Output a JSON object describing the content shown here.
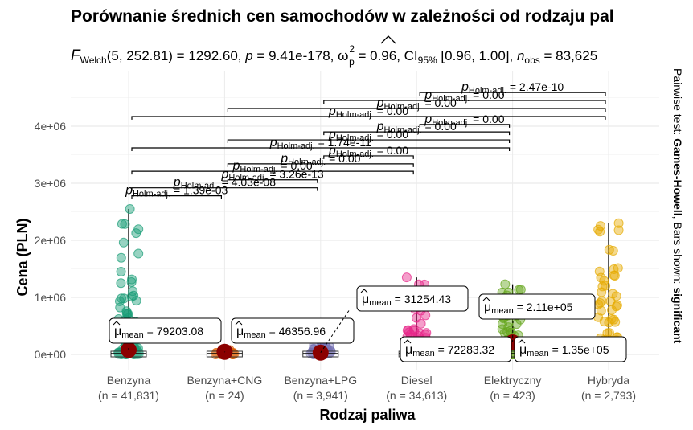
{
  "chart_data": {
    "type": "scatter",
    "title": "Porównanie średnich cen samochodów w zależności od rodzaju pal",
    "subtitle": {
      "stat_name": "F",
      "stat_sub": "Welch",
      "stat_rest": "(5, 252.81) = 1292.60, ",
      "p_part": "p",
      "p_rest": " = 9.41e-178, ",
      "omega": "ω",
      "omega_sup": "2",
      "omega_sub": "p",
      "omega_rest": " = 0.96, CI",
      "ci_sub": "95%",
      "ci_rest": " [0.96, 1.00], ",
      "n_part": "n",
      "n_sub": "obs",
      "n_rest": " = 83,625"
    },
    "xlabel": "Rodzaj paliwa",
    "ylabel": "Cena (PLN)",
    "caption_prefix": "Pairwise test: ",
    "caption_test": "Games-Howell",
    "caption_mid": ", Bars shown: ",
    "caption_bars": "significant",
    "ylim": [
      -300000,
      4900000
    ],
    "yticks": [
      0,
      1000000,
      2000000,
      3000000,
      4000000
    ],
    "ytick_labels": [
      "0e+00",
      "1e+06",
      "2e+06",
      "3e+06",
      "4e+06"
    ],
    "categories": [
      "Benzyna",
      "Benzyna+CNG",
      "Benzyna+LPG",
      "Diesel",
      "Elektryczny",
      "Hybryda"
    ],
    "counts": [
      "(n = 41,831)",
      "(n = 24)",
      "(n = 3,941)",
      "(n = 34,613)",
      "(n = 423)",
      "(n = 2,793)"
    ],
    "colors": [
      "#1b9e77",
      "#d95f02",
      "#7570b3",
      "#e7298a",
      "#66a61e",
      "#e6ab02"
    ],
    "mean_color": "#8b0000",
    "means": [
      79203.08,
      46356.96,
      31254.43,
      72283.32,
      211000,
      135000
    ],
    "mean_labels": [
      "79203.08",
      "46356.96",
      "31254.43",
      "72283.32",
      "2.11e+05",
      "1.35e+05"
    ],
    "mean_prefix": "μ",
    "mean_sub": "mean",
    "max_values": [
      2550000,
      80000,
      250000,
      1350000,
      1230000,
      2300000
    ],
    "comparisons": [
      {
        "from": 0,
        "to": 1,
        "label": "1.39e-03",
        "y": 2780000
      },
      {
        "from": 0,
        "to": 2,
        "label": "4.03e-08",
        "y": 2920000
      },
      {
        "from": 1,
        "to": 2,
        "label": "3.26e-13",
        "y": 3060000
      },
      {
        "from": 0,
        "to": 3,
        "label": "0.00",
        "y": 3210000
      },
      {
        "from": 1,
        "to": 3,
        "label": "0.00",
        "y": 3340000
      },
      {
        "from": 2,
        "to": 3,
        "label": "0.00",
        "y": 3480000
      },
      {
        "from": 0,
        "to": 4,
        "label": "1.74e-11",
        "y": 3620000
      },
      {
        "from": 1,
        "to": 4,
        "label": "0.00",
        "y": 3760000
      },
      {
        "from": 2,
        "to": 4,
        "label": "0.00",
        "y": 3900000
      },
      {
        "from": 3,
        "to": 4,
        "label": "0.00",
        "y": 4030000
      },
      {
        "from": 0,
        "to": 5,
        "label": "0.00",
        "y": 4170000
      },
      {
        "from": 1,
        "to": 5,
        "label": "0.00",
        "y": 4310000
      },
      {
        "from": 2,
        "to": 5,
        "label": "0.00",
        "y": 4450000
      },
      {
        "from": 3,
        "to": 5,
        "label": "2.47e-10",
        "y": 4590000
      }
    ],
    "p_prefix": "p",
    "p_sub": "Holm-adj.",
    "grid": true,
    "legend": "none"
  }
}
